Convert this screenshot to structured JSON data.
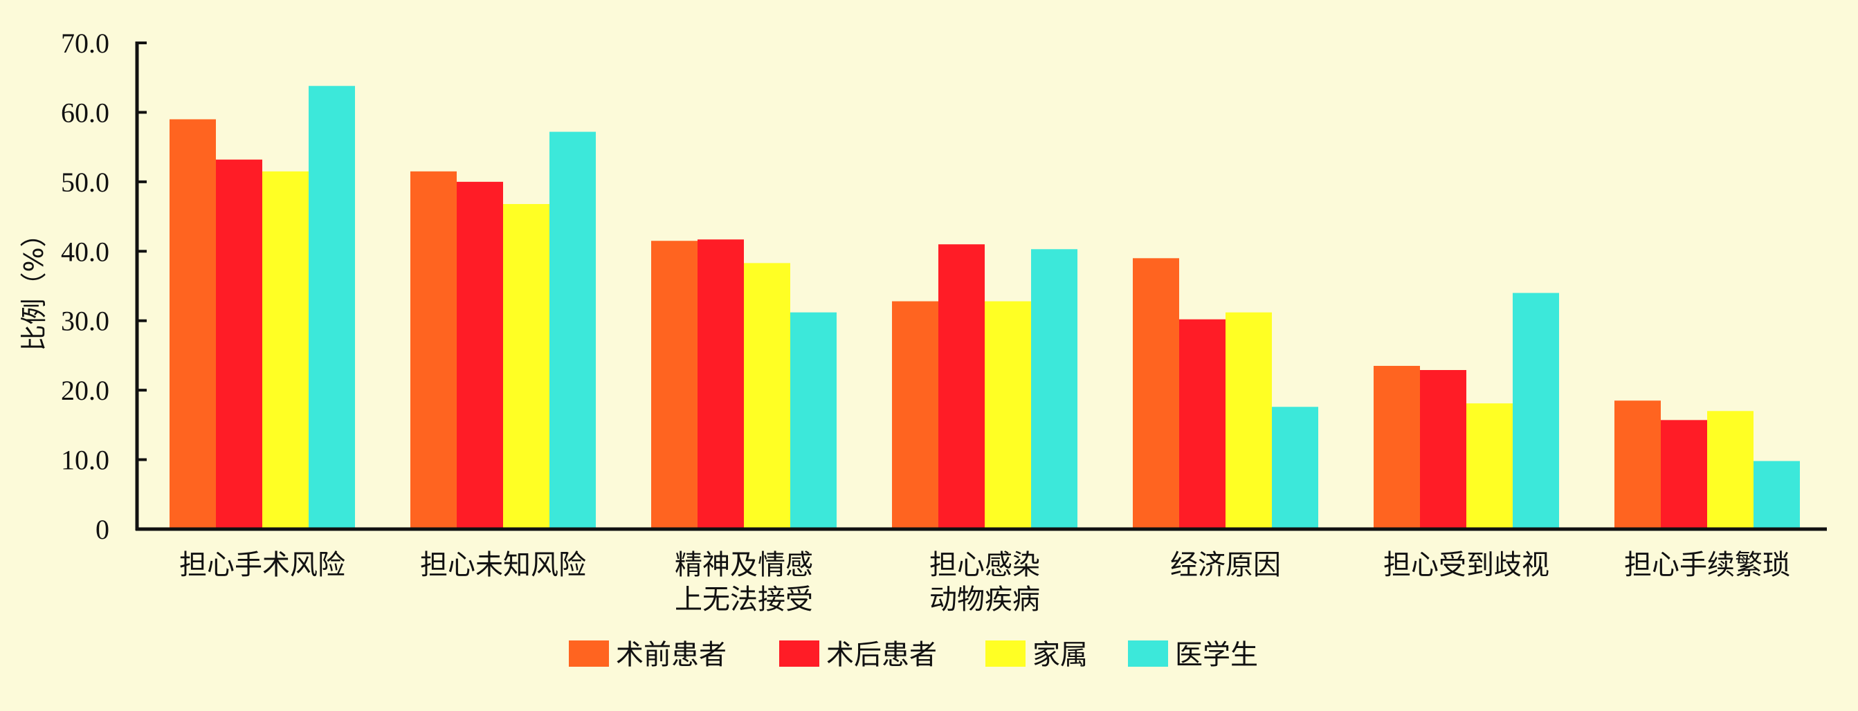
{
  "chart_data": {
    "type": "bar",
    "ylabel": "比例（%）",
    "ylim": [
      0,
      70
    ],
    "yticks": [
      "0",
      "10.0",
      "20.0",
      "30.0",
      "40.0",
      "50.0",
      "60.0",
      "70.0"
    ],
    "grid": false,
    "legend_position": "bottom",
    "categories": [
      [
        "担心手术风险"
      ],
      [
        "担心未知风险"
      ],
      [
        "精神及情感",
        "上无法接受"
      ],
      [
        "担心感染",
        "动物疾病"
      ],
      [
        "经济原因"
      ],
      [
        "担心受到歧视"
      ],
      [
        "担心手续繁琐"
      ]
    ],
    "series": [
      {
        "name": "术前患者",
        "color": "#ff6420",
        "values": [
          59.0,
          51.5,
          41.5,
          32.8,
          39.0,
          23.5,
          18.5
        ]
      },
      {
        "name": "术后患者",
        "color": "#ff1c26",
        "values": [
          53.2,
          50.0,
          41.7,
          41.0,
          30.2,
          22.9,
          15.7
        ]
      },
      {
        "name": "家属",
        "color": "#ffff24",
        "values": [
          51.5,
          46.8,
          38.3,
          32.8,
          31.2,
          18.1,
          17.0
        ]
      },
      {
        "name": "医学生",
        "color": "#3ce8da",
        "values": [
          63.8,
          57.2,
          31.2,
          40.3,
          17.6,
          34.0,
          9.8
        ]
      }
    ]
  }
}
